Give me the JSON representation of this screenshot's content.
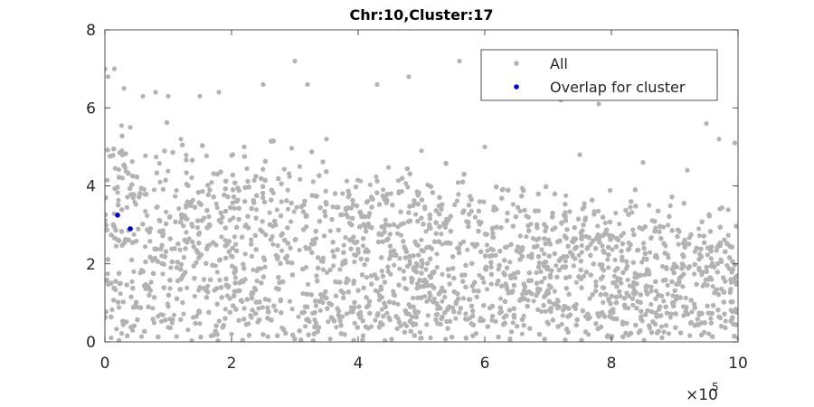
{
  "chart_data": {
    "type": "scatter",
    "title": "Chr:10,Cluster:17",
    "xlabel": "",
    "ylabel": "",
    "xlim": [
      0,
      1000000
    ],
    "ylim": [
      0,
      8
    ],
    "x_ticks": [
      0,
      200000,
      400000,
      600000,
      800000,
      1000000
    ],
    "x_tick_labels": [
      "0",
      "2",
      "4",
      "6",
      "8",
      "10"
    ],
    "x_exponent_label": {
      "base": "×10",
      "exponent": "5"
    },
    "y_ticks": [
      0,
      2,
      4,
      6,
      8
    ],
    "y_tick_labels": [
      "0",
      "2",
      "4",
      "6",
      "8"
    ],
    "grid": false,
    "legend_position": "top-right",
    "series": [
      {
        "name": "All",
        "color": "#b3b3b3",
        "distribution": "dense band of points across the full x-range; density highest between y≈0.5 and y≈3.5, decaying above; band upper edge falls from ≈4.5 near x=0 to ≈2.7 near x=1,000,000; maximum ≈7.2",
        "sample_points": [
          [
            0,
            7.0
          ],
          [
            5000,
            6.8
          ],
          [
            15000,
            7.0
          ],
          [
            30000,
            6.5
          ],
          [
            60000,
            6.3
          ],
          [
            80000,
            6.4
          ],
          [
            100000,
            6.3
          ],
          [
            150000,
            6.3
          ],
          [
            180000,
            6.4
          ],
          [
            250000,
            6.6
          ],
          [
            300000,
            7.2
          ],
          [
            320000,
            6.6
          ],
          [
            430000,
            6.6
          ],
          [
            480000,
            6.8
          ],
          [
            560000,
            7.2
          ],
          [
            650000,
            6.4
          ],
          [
            720000,
            6.2
          ],
          [
            780000,
            6.1
          ],
          [
            950000,
            5.6
          ],
          [
            970000,
            5.2
          ],
          [
            995000,
            5.1
          ],
          [
            40000,
            5.5
          ],
          [
            120000,
            5.2
          ],
          [
            220000,
            5.0
          ],
          [
            350000,
            5.2
          ],
          [
            500000,
            4.9
          ],
          [
            600000,
            5.0
          ],
          [
            750000,
            4.8
          ],
          [
            850000,
            4.6
          ],
          [
            920000,
            4.4
          ],
          [
            10000,
            0.1
          ],
          [
            200000,
            0.2
          ],
          [
            500000,
            0.1
          ],
          [
            800000,
            0.1
          ],
          [
            1000000,
            0.1
          ]
        ]
      },
      {
        "name": "Overlap for cluster",
        "color": "#0000cc",
        "points": [
          [
            20000,
            3.25
          ],
          [
            40000,
            2.9
          ]
        ]
      }
    ]
  }
}
